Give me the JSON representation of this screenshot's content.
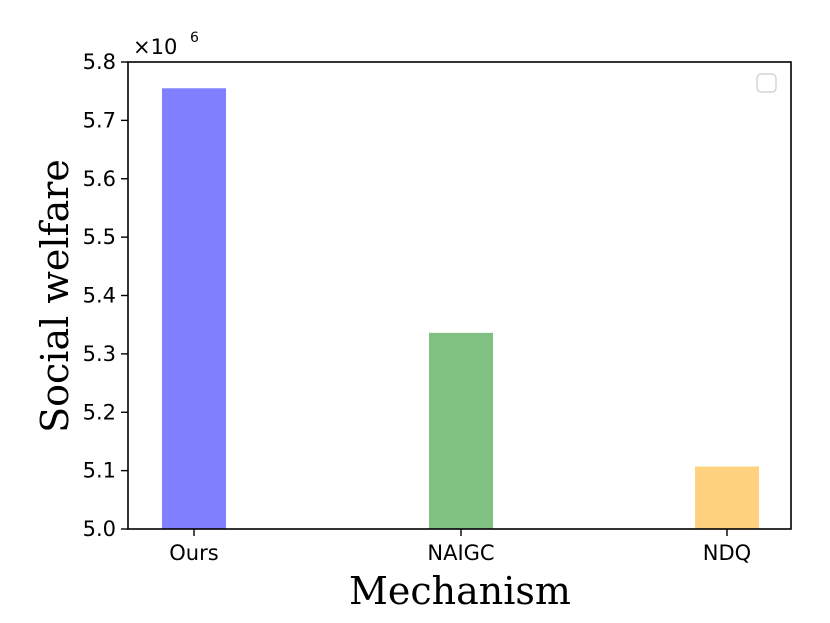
{
  "chart_data": {
    "type": "bar",
    "categories": [
      "Ours",
      "NAIGC",
      "NDQ"
    ],
    "values": [
      5.755,
      5.336,
      5.107
    ],
    "colors": [
      "#8080ff",
      "#80c080",
      "#ffd280"
    ],
    "xlabel": "Mechanism",
    "ylabel": "Social welfare",
    "ylim": [
      5.0,
      5.8
    ],
    "yticks": [
      5.0,
      5.1,
      5.2,
      5.3,
      5.4,
      5.5,
      5.6,
      5.7,
      5.8
    ],
    "ytick_labels": [
      "5.0",
      "5.1",
      "5.2",
      "5.3",
      "5.4",
      "5.5",
      "5.6",
      "5.7",
      "5.8"
    ],
    "y_offset_base": "×10",
    "y_offset_exponent": "6",
    "grid": false,
    "legend": "top-right"
  }
}
